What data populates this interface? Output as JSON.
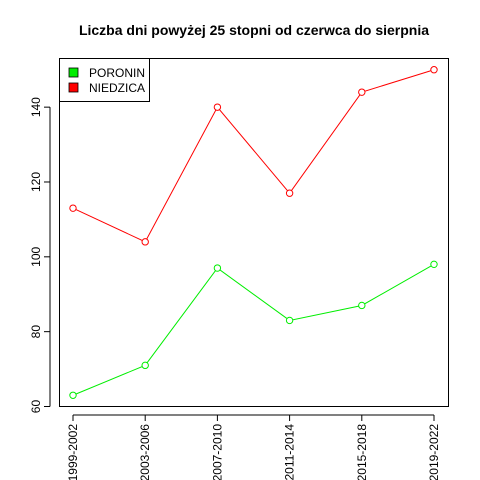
{
  "chart_data": {
    "type": "line",
    "title": "Liczba dni powyżej 25 stopni od czerwca do sierpnia",
    "xlabel": "",
    "ylabel": "",
    "categories": [
      "1999-2002",
      "2003-2006",
      "2007-2010",
      "2011-2014",
      "2015-2018",
      "2019-2022"
    ],
    "series": [
      {
        "name": "PORONIN",
        "color": "#00ee00",
        "values": [
          63,
          71,
          97,
          83,
          87,
          98
        ]
      },
      {
        "name": "NIEDZICA",
        "color": "#ff0000",
        "values": [
          113,
          104,
          140,
          117,
          144,
          150
        ]
      }
    ],
    "ylim": [
      60,
      153
    ],
    "yticks": [
      60,
      80,
      100,
      120,
      140
    ],
    "grid": false,
    "legend_position": "top-left"
  }
}
